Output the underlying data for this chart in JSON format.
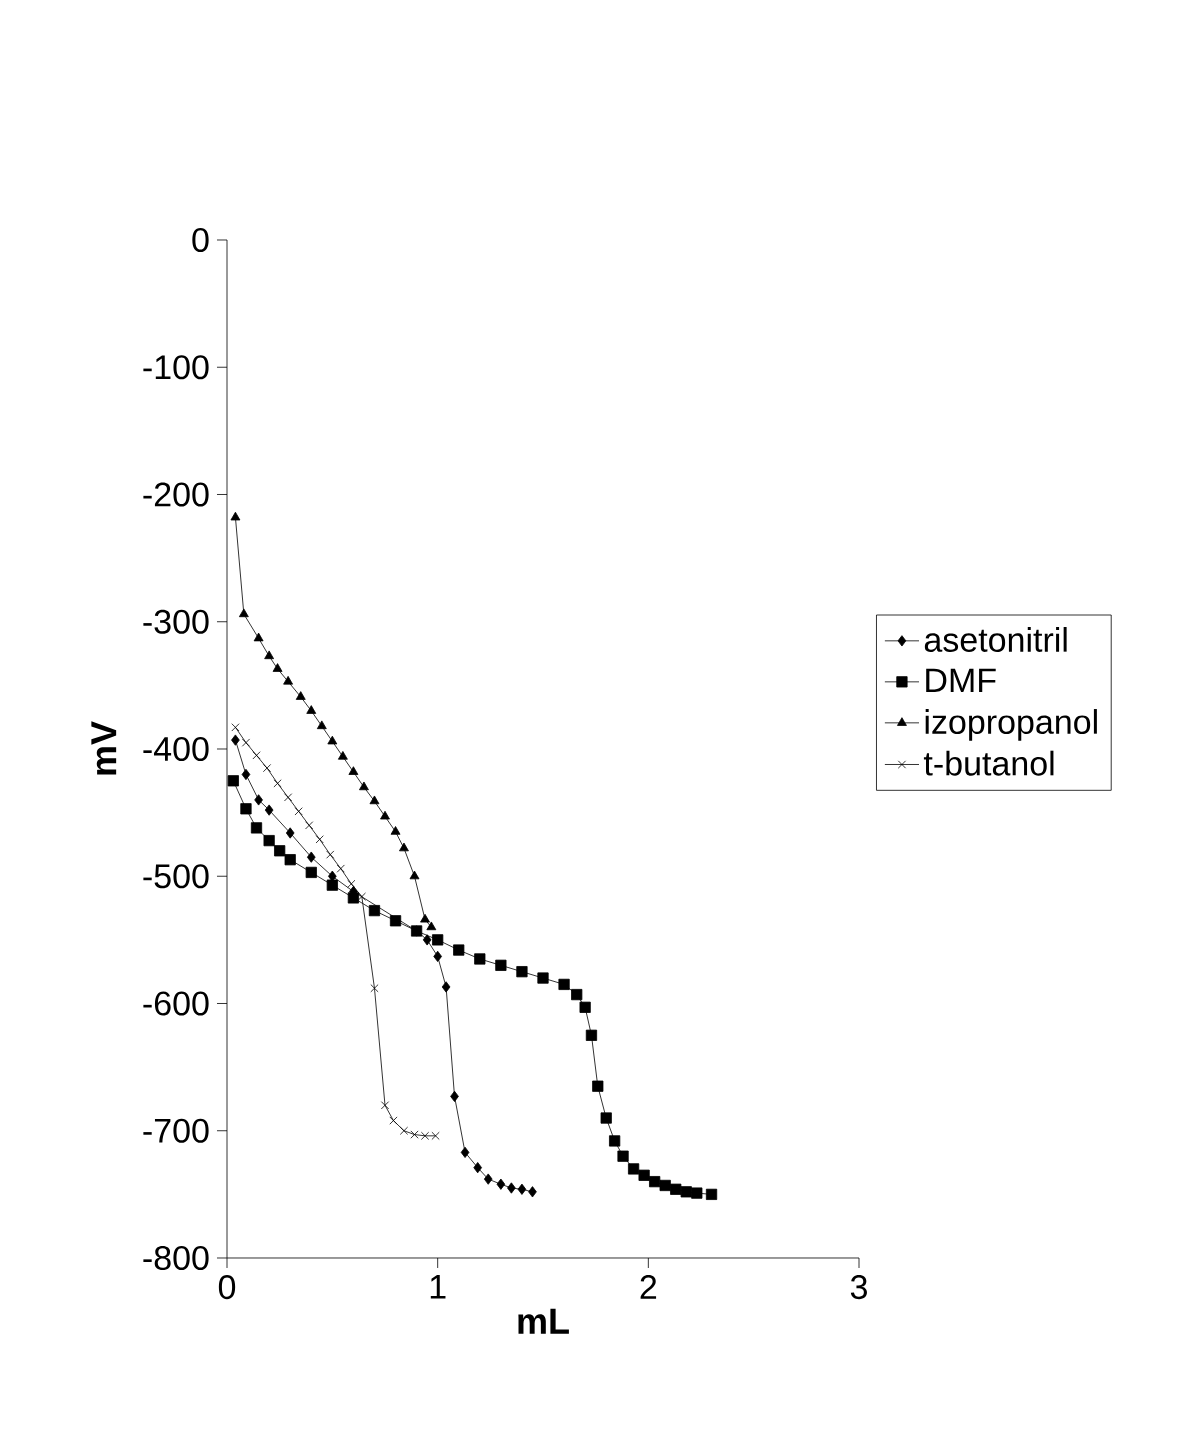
{
  "chart_data": {
    "type": "line",
    "xlabel": "mL",
    "ylabel": "mV",
    "xlim": [
      0,
      3
    ],
    "ylim": [
      -800,
      0
    ],
    "xticks": [
      0,
      1,
      2,
      3
    ],
    "yticks": [
      -800,
      -700,
      -600,
      -500,
      -400,
      -300,
      -200,
      -100,
      0
    ],
    "legend": "right",
    "grid": false,
    "line_style": "solid",
    "series": [
      {
        "name": "asetonitril",
        "color": "#000000",
        "marker": "diamond",
        "x": [
          0.04,
          0.09,
          0.15,
          0.2,
          0.3,
          0.4,
          0.5,
          0.6,
          0.7,
          0.8,
          0.9,
          0.95,
          1.0,
          1.04,
          1.08,
          1.13,
          1.19,
          1.24,
          1.3,
          1.35,
          1.4,
          1.45
        ],
        "values": [
          -393,
          -420,
          -440,
          -448,
          -466,
          -485,
          -500,
          -512,
          null,
          null,
          -543,
          -550,
          -563,
          -587,
          -673,
          -717,
          -729,
          -738,
          -742,
          -745,
          -746,
          -748
        ]
      },
      {
        "name": "DMF",
        "color": "#000000",
        "marker": "square",
        "x": [
          0.03,
          0.09,
          0.14,
          0.2,
          0.25,
          0.3,
          0.4,
          0.5,
          0.6,
          0.7,
          0.8,
          0.9,
          1.0,
          1.1,
          1.2,
          1.3,
          1.4,
          1.5,
          1.6,
          1.66,
          1.7,
          1.73,
          1.76,
          1.8,
          1.84,
          1.88,
          1.93,
          1.98,
          2.03,
          2.08,
          2.13,
          2.18,
          2.23,
          2.3
        ],
        "values": [
          -425,
          -447,
          -462,
          -472,
          -480,
          -487,
          -497,
          -507,
          -517,
          -527,
          -535,
          -543,
          -550,
          -558,
          -565,
          -570,
          -575,
          -580,
          -585,
          -593,
          -603,
          -625,
          -665,
          -690,
          -708,
          -720,
          -730,
          -735,
          -740,
          -743,
          -746,
          -748,
          -749,
          -750
        ]
      },
      {
        "name": "izopropanol",
        "color": "#000000",
        "marker": "triangle",
        "x": [
          0.04,
          0.08,
          0.15,
          0.2,
          0.24,
          0.29,
          0.35,
          0.4,
          0.45,
          0.5,
          0.55,
          0.6,
          0.65,
          0.7,
          0.75,
          0.8,
          0.84,
          0.89,
          0.94,
          0.97
        ],
        "values": [
          -218,
          -294,
          -313,
          -327,
          -337,
          -347,
          -359,
          -370,
          -382,
          -394,
          -406,
          -418,
          -430,
          -441,
          -453,
          -465,
          -478,
          -500,
          -534,
          -540
        ]
      },
      {
        "name": "t-butanol",
        "color": "#000000",
        "marker": "cross",
        "x": [
          0.04,
          0.09,
          0.14,
          0.19,
          0.24,
          0.29,
          0.34,
          0.39,
          0.44,
          0.49,
          0.54,
          0.59,
          0.64,
          0.7,
          0.75,
          0.79,
          0.84,
          0.89,
          0.94,
          0.99
        ],
        "values": [
          -383,
          -395,
          -405,
          -415,
          -427,
          -438,
          -449,
          -460,
          -471,
          -483,
          -494,
          -506,
          -516,
          -588,
          -680,
          -692,
          -700,
          -703,
          -704,
          -704
        ]
      }
    ]
  }
}
